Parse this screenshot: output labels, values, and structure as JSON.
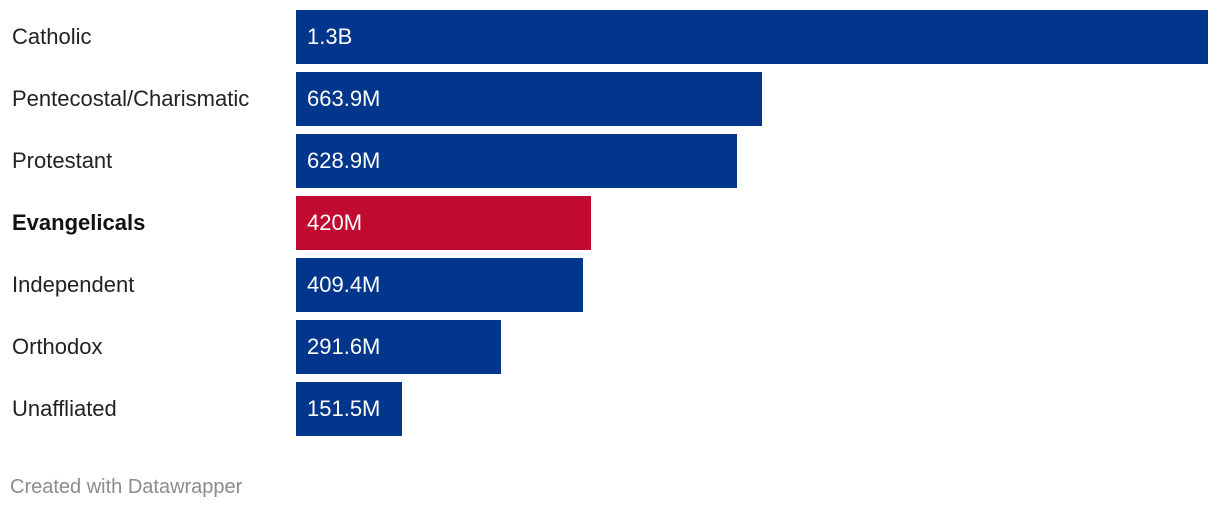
{
  "chart_data": {
    "type": "bar",
    "orientation": "horizontal",
    "title": "",
    "xlabel": "",
    "ylabel": "",
    "xlim": [
      0,
      1300000000
    ],
    "grid": false,
    "categories": [
      "Catholic",
      "Pentecostal/Charismatic",
      "Protestant",
      "Evangelicals",
      "Independent",
      "Orthodox",
      "Unaffliated"
    ],
    "values": [
      1300000000,
      663900000,
      628900000,
      420000000,
      409400000,
      291600000,
      151500000
    ],
    "value_labels": [
      "1.3B",
      "663.9M",
      "628.9M",
      "420M",
      "409.4M",
      "291.6M",
      "151.5M"
    ],
    "highlight_index": 3,
    "colors": {
      "default": "#02368C",
      "highlight": "#C00A30"
    }
  },
  "footer": {
    "credit": "Created with Datawrapper"
  }
}
